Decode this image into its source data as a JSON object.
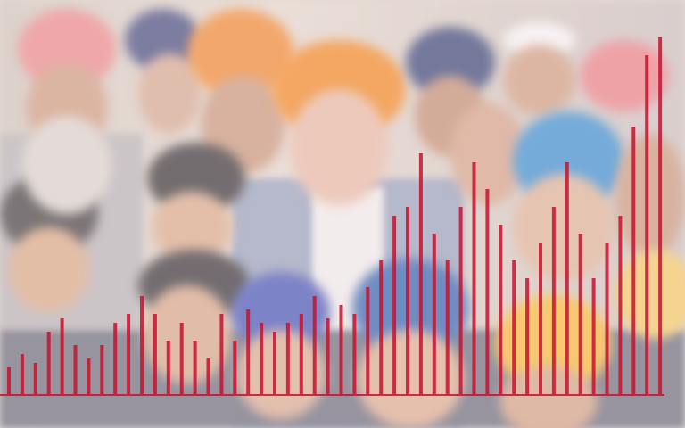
{
  "image": {
    "description_regions": [
      "crowd-photo",
      "bar-overlay"
    ],
    "colors": {
      "bar": "#c8102e",
      "turban_orange": "#f08a2c",
      "turban_blue": "#3d5fa8",
      "turban_pink": "#e98a8e",
      "suit_gray": "#8f97b3",
      "skin": "#d9a98a"
    }
  }
}
